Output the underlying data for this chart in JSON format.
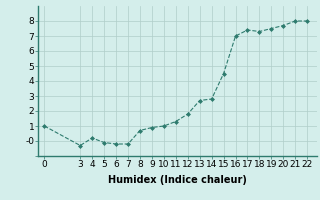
{
  "x": [
    0,
    3,
    4,
    5,
    6,
    7,
    8,
    9,
    10,
    11,
    12,
    13,
    14,
    15,
    16,
    17,
    18,
    19,
    20,
    21,
    22
  ],
  "y": [
    1.0,
    -0.3,
    0.2,
    -0.1,
    -0.2,
    -0.2,
    0.7,
    0.9,
    1.0,
    1.3,
    1.8,
    2.7,
    2.8,
    4.5,
    7.0,
    7.4,
    7.3,
    7.5,
    7.7,
    8.0,
    8.0
  ],
  "line_color": "#2e7b6e",
  "marker": "D",
  "marker_size": 2.0,
  "bg_color": "#d4eeeb",
  "grid_color": "#b0cdc9",
  "xlabel": "Humidex (Indice chaleur)",
  "xlabel_fontsize": 7,
  "tick_fontsize": 6.5,
  "xlim": [
    -0.5,
    22.8
  ],
  "ylim": [
    -1.0,
    9.0
  ],
  "ytick_labels": [
    "",
    "-0",
    "1",
    "2",
    "3",
    "4",
    "5",
    "6",
    "7",
    "8"
  ],
  "ytick_vals": [
    -1,
    0,
    1,
    2,
    3,
    4,
    5,
    6,
    7,
    8
  ],
  "xtick_vals": [
    0,
    3,
    4,
    5,
    6,
    7,
    8,
    9,
    10,
    11,
    12,
    13,
    14,
    15,
    16,
    17,
    18,
    19,
    20,
    21,
    22
  ],
  "xtick_labels": [
    "0",
    "3",
    "4",
    "5",
    "6",
    "7",
    "8",
    "9",
    "10",
    "11",
    "12",
    "13",
    "14",
    "15",
    "16",
    "17",
    "18",
    "19",
    "20",
    "21",
    "22"
  ]
}
